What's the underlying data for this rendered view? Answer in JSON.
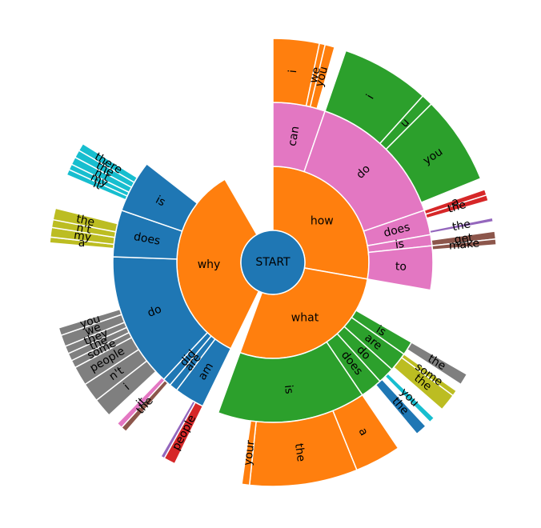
{
  "chart_data": {
    "type": "sunburst",
    "title": "",
    "root": "START",
    "sectors": [
      {
        "level": 1,
        "label": "how",
        "start": 0,
        "end": 100,
        "color": "#ff7f0e"
      },
      {
        "level": 1,
        "label": "what",
        "start": 100,
        "end": 200,
        "color": "#ff7f0e"
      },
      {
        "level": 1,
        "label": "why",
        "start": 206,
        "end": 330,
        "color": "#ff7f0e"
      },
      {
        "level": 2,
        "label": "can",
        "start": 0,
        "end": 19,
        "color": "#e377c2"
      },
      {
        "level": 2,
        "label": "do",
        "start": 19,
        "end": 71,
        "color": "#e377c2"
      },
      {
        "level": 2,
        "label": "does",
        "start": 71,
        "end": 80,
        "color": "#e377c2"
      },
      {
        "level": 2,
        "label": "is",
        "start": 80,
        "end": 84,
        "color": "#e377c2"
      },
      {
        "level": 2,
        "label": "to",
        "start": 84,
        "end": 100,
        "color": "#e377c2"
      },
      {
        "level": 2,
        "label": "is",
        "start": 120,
        "end": 125,
        "color": "#2ca02c"
      },
      {
        "level": 2,
        "label": "are",
        "start": 125,
        "end": 132,
        "color": "#2ca02c"
      },
      {
        "level": 2,
        "label": "do",
        "start": 132,
        "end": 138,
        "color": "#2ca02c"
      },
      {
        "level": 2,
        "label": "does",
        "start": 138,
        "end": 146,
        "color": "#2ca02c"
      },
      {
        "level": 2,
        "label": "is",
        "start": 146,
        "end": 200,
        "color": "#2ca02c"
      },
      {
        "level": 2,
        "label": "am",
        "start": 206,
        "end": 217,
        "color": "#1f77b4"
      },
      {
        "level": 2,
        "label": "are",
        "start": 217,
        "end": 220,
        "color": "#1f77b4"
      },
      {
        "level": 2,
        "label": "did",
        "start": 220,
        "end": 223,
        "color": "#1f77b4"
      },
      {
        "level": 2,
        "label": "do",
        "start": 223,
        "end": 272,
        "color": "#1f77b4"
      },
      {
        "level": 2,
        "label": "does",
        "start": 272,
        "end": 289,
        "color": "#1f77b4"
      },
      {
        "level": 2,
        "label": "is",
        "start": 289,
        "end": 308,
        "color": "#1f77b4"
      },
      {
        "level": 3,
        "label": "i",
        "start": 0,
        "end": 12,
        "color": "#ff7f0e"
      },
      {
        "level": 3,
        "label": "we",
        "start": 12,
        "end": 13.5,
        "color": "#ff7f0e"
      },
      {
        "level": 3,
        "label": "you",
        "start": 13.5,
        "end": 16,
        "color": "#ff7f0e"
      },
      {
        "level": 3,
        "label": "i",
        "start": 19,
        "end": 42,
        "color": "#2ca02c"
      },
      {
        "level": 3,
        "label": "u",
        "start": 42,
        "end": 45,
        "color": "#2ca02c"
      },
      {
        "level": 3,
        "label": "you",
        "start": 45,
        "end": 68,
        "color": "#2ca02c"
      },
      {
        "level": 3,
        "label": "a",
        "start": 71,
        "end": 72.5,
        "color": "#d62728"
      },
      {
        "level": 3,
        "label": "the",
        "start": 72.5,
        "end": 74,
        "color": "#d62728"
      },
      {
        "level": 3,
        "label": "the",
        "start": 78.5,
        "end": 79.5,
        "color": "#9467bd"
      },
      {
        "level": 3,
        "label": "get",
        "start": 82,
        "end": 84,
        "color": "#8c564b"
      },
      {
        "level": 3,
        "label": "make",
        "start": 84,
        "end": 85.5,
        "color": "#8c564b"
      },
      {
        "level": 3,
        "label": "the",
        "start": 120,
        "end": 123,
        "color": "#7f7f7f"
      },
      {
        "level": 3,
        "label": "some",
        "start": 125,
        "end": 126.5,
        "color": "#bcbd22"
      },
      {
        "level": 3,
        "label": "the",
        "start": 126.5,
        "end": 131,
        "color": "#bcbd22"
      },
      {
        "level": 3,
        "label": "you",
        "start": 134,
        "end": 135.5,
        "color": "#17becf"
      },
      {
        "level": 3,
        "label": "the",
        "start": 137,
        "end": 140,
        "color": "#1f77b4"
      },
      {
        "level": 3,
        "label": "a",
        "start": 146,
        "end": 158,
        "color": "#ff7f0e"
      },
      {
        "level": 3,
        "label": "the",
        "start": 158,
        "end": 186,
        "color": "#ff7f0e"
      },
      {
        "level": 3,
        "label": "your",
        "start": 186,
        "end": 188,
        "color": "#ff7f0e"
      },
      {
        "level": 3,
        "label": "people",
        "start": 206,
        "end": 209,
        "color": "#d62728"
      },
      {
        "level": 3,
        "label": "",
        "start": 209,
        "end": 210,
        "color": "#9467bd"
      },
      {
        "level": 3,
        "label": "the",
        "start": 221,
        "end": 222.5,
        "color": "#8c564b"
      },
      {
        "level": 3,
        "label": "it",
        "start": 222.5,
        "end": 224,
        "color": "#e377c2"
      },
      {
        "level": 3,
        "label": "i",
        "start": 227,
        "end": 232,
        "color": "#7f7f7f"
      },
      {
        "level": 3,
        "label": "n't",
        "start": 232,
        "end": 237,
        "color": "#7f7f7f"
      },
      {
        "level": 3,
        "label": "people",
        "start": 237,
        "end": 242,
        "color": "#7f7f7f"
      },
      {
        "level": 3,
        "label": "some",
        "start": 242,
        "end": 244,
        "color": "#7f7f7f"
      },
      {
        "level": 3,
        "label": "the",
        "start": 244,
        "end": 246,
        "color": "#7f7f7f"
      },
      {
        "level": 3,
        "label": "they",
        "start": 246,
        "end": 248,
        "color": "#7f7f7f"
      },
      {
        "level": 3,
        "label": "we",
        "start": 248,
        "end": 251,
        "color": "#7f7f7f"
      },
      {
        "level": 3,
        "label": "you",
        "start": 251,
        "end": 253,
        "color": "#7f7f7f"
      },
      {
        "level": 3,
        "label": "a",
        "start": 275,
        "end": 276.5,
        "color": "#bcbd22"
      },
      {
        "level": 3,
        "label": "my",
        "start": 276.5,
        "end": 279,
        "color": "#bcbd22"
      },
      {
        "level": 3,
        "label": "n't",
        "start": 279,
        "end": 281,
        "color": "#bcbd22"
      },
      {
        "level": 3,
        "label": "the",
        "start": 281,
        "end": 284,
        "color": "#bcbd22"
      },
      {
        "level": 3,
        "label": "it",
        "start": 293,
        "end": 294.5,
        "color": "#17becf"
      },
      {
        "level": 3,
        "label": "my",
        "start": 294.5,
        "end": 296,
        "color": "#17becf"
      },
      {
        "level": 3,
        "label": "n't",
        "start": 296,
        "end": 298,
        "color": "#17becf"
      },
      {
        "level": 3,
        "label": "the",
        "start": 298,
        "end": 300,
        "color": "#17becf"
      },
      {
        "level": 3,
        "label": "there",
        "start": 300,
        "end": 302,
        "color": "#17becf"
      }
    ]
  }
}
